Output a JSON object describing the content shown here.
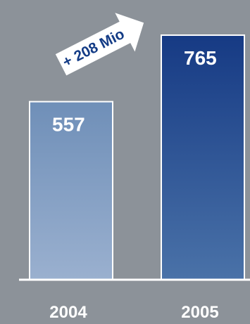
{
  "chart_data": {
    "type": "bar",
    "categories": [
      "2004",
      "2005"
    ],
    "values": [
      557,
      765
    ],
    "title": "",
    "xlabel": "",
    "ylabel": "",
    "ylim": [
      0,
      875
    ],
    "grid": false,
    "legend": "none",
    "annotation": {
      "text": "+ 208 Mio",
      "from": "2004",
      "to": "2005"
    }
  },
  "colors": {
    "background": "#8c9299",
    "bar_2004_top": "#6f8fb8",
    "bar_2004_bottom": "#9ab0cf",
    "bar_2005_top": "#163a84",
    "bar_2005_bottom": "#4a72a8",
    "bar_border": "#ffffff",
    "axis": "#ffffff",
    "arrow_fill": "#ffffff",
    "arrow_text": "#143c86"
  }
}
